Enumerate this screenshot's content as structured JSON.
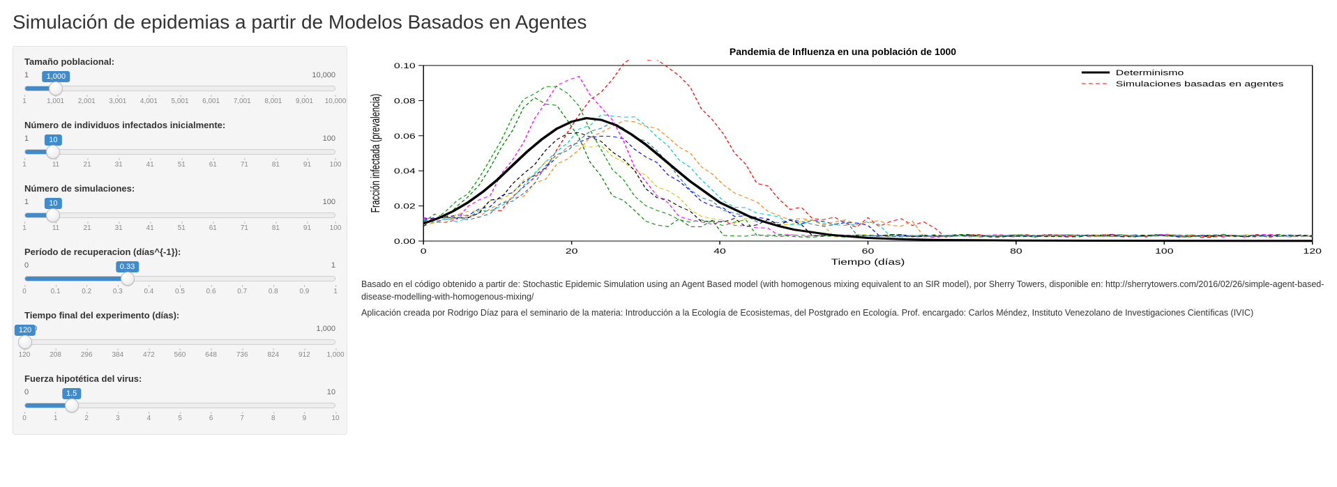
{
  "page": {
    "title": "Simulación de epidemias a partir de Modelos Basados en Agentes"
  },
  "accent_color": "#428bca",
  "sidebar": {
    "background": "#f5f5f5",
    "sliders": [
      {
        "id": "pop",
        "label": "Tamaño poblacional:",
        "min": 1,
        "max": 10000,
        "value": 1000,
        "display_value": "1,000",
        "display_max": "10,000",
        "tick_step": 1000,
        "tick_start": 1
      },
      {
        "id": "init_inf",
        "label": "Número de individuos infectados inicialmente:",
        "min": 1,
        "max": 100,
        "value": 10,
        "display_value": "10",
        "tick_step": 10,
        "tick_start": 1
      },
      {
        "id": "nsim",
        "label": "Número de simulaciones:",
        "min": 1,
        "max": 100,
        "value": 10,
        "display_value": "10",
        "tick_step": 10,
        "tick_start": 1
      },
      {
        "id": "recov",
        "label": "Período de recuperacion (días^{-1}):",
        "min": 0,
        "max": 1,
        "value": 0.33,
        "display_value": "0.33",
        "tick_step": 0.1,
        "tick_start": 0
      },
      {
        "id": "tfinal",
        "label": "Tiempo final del experimento (días):",
        "min": 120,
        "max": 1000,
        "value": 120,
        "display_value": "120",
        "display_max": "1,000",
        "tick_step": 88,
        "tick_start": 120
      },
      {
        "id": "virus",
        "label": "Fuerza hipotética del virus:",
        "min": 0,
        "max": 10,
        "value": 1.5,
        "display_value": "1.5",
        "tick_step": 1,
        "tick_start": 0
      }
    ]
  },
  "chart": {
    "type": "line",
    "title": "Pandemia de Influenza en una población de 1000",
    "xlabel": "Tiempo (días)",
    "ylabel": "Fracción infectada (prevalencia)",
    "xlim": [
      0,
      120
    ],
    "xtick_step": 20,
    "ylim": [
      0,
      0.1
    ],
    "ytick_step": 0.02,
    "background_color": "#ffffff",
    "axis_color": "#000000",
    "title_fontsize": 14,
    "label_fontsize": 12,
    "tick_fontsize": 11,
    "legend": {
      "position": "top-right",
      "items": [
        {
          "label": "Determinismo",
          "color": "#000000",
          "dash": "solid",
          "width": 3
        },
        {
          "label": "Simulaciones basadas en agentes",
          "color": "#ff0000",
          "dash": "dash",
          "width": 1
        }
      ]
    },
    "deterministic": {
      "color": "#000000",
      "width": 3,
      "dash": "solid",
      "x": [
        0,
        2,
        4,
        6,
        8,
        10,
        12,
        14,
        16,
        18,
        20,
        22,
        24,
        26,
        28,
        30,
        32,
        34,
        36,
        38,
        40,
        42,
        44,
        46,
        48,
        50,
        55,
        60,
        65,
        70,
        80,
        90,
        100,
        110,
        120
      ],
      "y": [
        0.01,
        0.013,
        0.017,
        0.022,
        0.028,
        0.035,
        0.043,
        0.051,
        0.058,
        0.064,
        0.068,
        0.07,
        0.069,
        0.066,
        0.061,
        0.055,
        0.048,
        0.041,
        0.034,
        0.028,
        0.022,
        0.018,
        0.014,
        0.011,
        0.0085,
        0.0065,
        0.0035,
        0.0018,
        0.001,
        0.0006,
        0.0003,
        0.0002,
        0.00015,
        0.0001,
        0.0001
      ]
    },
    "sim_colors": [
      "#ff0000",
      "#00a000",
      "#0000ff",
      "#ff00ff",
      "#00c8c8",
      "#d4c400",
      "#008000",
      "#ff7f0e",
      "#000000",
      "#1f77b4"
    ],
    "sim_style": {
      "dash": "dash",
      "width": 1
    },
    "simulations": [
      {
        "peak_t": 30,
        "peak_y": 0.105,
        "spread": 13,
        "noise": 0.006
      },
      {
        "peak_t": 17,
        "peak_y": 0.09,
        "spread": 9,
        "noise": 0.005
      },
      {
        "peak_t": 24,
        "peak_y": 0.06,
        "spread": 12,
        "noise": 0.004
      },
      {
        "peak_t": 20,
        "peak_y": 0.092,
        "spread": 9,
        "noise": 0.006
      },
      {
        "peak_t": 26,
        "peak_y": 0.072,
        "spread": 12,
        "noise": 0.004
      },
      {
        "peak_t": 22,
        "peak_y": 0.055,
        "spread": 11,
        "noise": 0.005
      },
      {
        "peak_t": 16,
        "peak_y": 0.08,
        "spread": 8,
        "noise": 0.006
      },
      {
        "peak_t": 28,
        "peak_y": 0.068,
        "spread": 13,
        "noise": 0.004
      },
      {
        "peak_t": 21,
        "peak_y": 0.06,
        "spread": 10,
        "noise": 0.005
      },
      {
        "peak_t": 25,
        "peak_y": 0.066,
        "spread": 11,
        "noise": 0.004
      }
    ]
  },
  "footer": {
    "p1": "Basado en el código obtenido a partir de: Stochastic Epidemic Simulation using an Agent Based model (with homogenous mixing equivalent to an SIR model), por Sherry Towers, disponible en: http://sherrytowers.com/2016/02/26/simple-agent-based-disease-modelling-with-homogenous-mixing/",
    "p2": "Aplicación creada por Rodrigo Díaz para el seminario de la materia: Introducción a la Ecología de Ecosistemas, del Postgrado en Ecología. Prof. encargado: Carlos Méndez, Instituto Venezolano de Investigaciones Científicas (IVIC)"
  }
}
